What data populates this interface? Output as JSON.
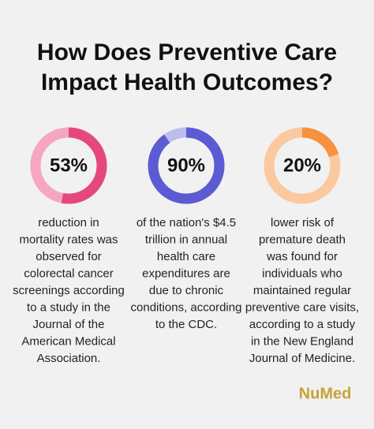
{
  "title": [
    "How Does Preventive Care",
    "Impact Health Outcomes?"
  ],
  "stats": [
    {
      "value": 53,
      "value_label": "53%",
      "color": "#e5487b",
      "track_color": "#f5a6c0",
      "description": [
        "reduction in",
        "mortality rates was",
        "observed for",
        "colorectal cancer",
        "screenings according",
        "to a study in the",
        "Journal of the",
        "American Medical",
        "Association."
      ]
    },
    {
      "value": 90,
      "value_label": "90%",
      "color": "#5c5bd3",
      "track_color": "#bcbcee",
      "description": [
        "of the nation's $4.5",
        "trillion in annual",
        "health care",
        "expenditures are",
        "due to chronic",
        "conditions, according",
        "to the CDC."
      ]
    },
    {
      "value": 20,
      "value_label": "20%",
      "color": "#f6913f",
      "track_color": "#fbc99f",
      "description": [
        "lower risk of",
        "premature death",
        "was found for",
        "individuals who",
        "maintained regular",
        "preventive care visits,",
        "according to a study",
        "in the New England",
        "Journal of Medicine."
      ]
    }
  ],
  "logo": "NuMed"
}
